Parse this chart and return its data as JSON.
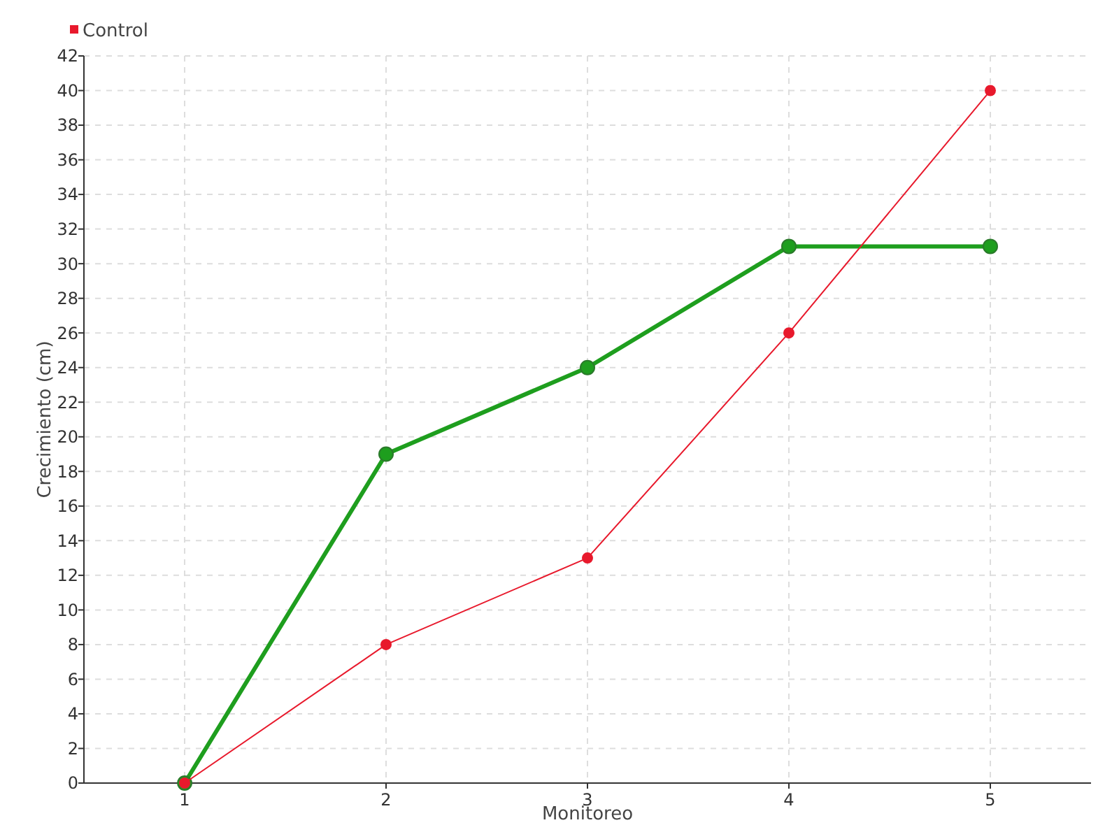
{
  "chart_data": {
    "type": "line",
    "xlabel": "Monitoreo",
    "ylabel": "Crecimiento (cm)",
    "categories": [
      "1",
      "2",
      "3",
      "4",
      "5"
    ],
    "series": [
      {
        "color": "#1e9e1e",
        "values": [
          0,
          19,
          24,
          31,
          31
        ]
      },
      {
        "name": "Control",
        "color": "#e8192c",
        "values": [
          0,
          8,
          13,
          26,
          40
        ]
      }
    ],
    "ylim": [
      0,
      42
    ],
    "yticks": [
      0,
      2,
      4,
      6,
      8,
      10,
      12,
      14,
      16,
      18,
      20,
      22,
      24,
      26,
      28,
      30,
      32,
      34,
      36,
      38,
      40,
      42
    ],
    "grid": true,
    "legend": "top left",
    "marker": "circle",
    "line_style": "solid"
  }
}
